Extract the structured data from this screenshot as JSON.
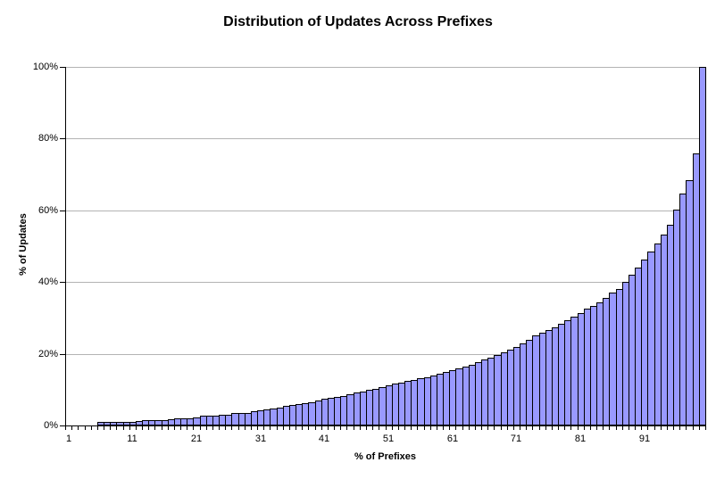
{
  "chart_data": {
    "type": "bar",
    "title": "Distribution of Updates Across Prefixes",
    "xlabel": "% of Prefixes",
    "ylabel": "% of Updates",
    "x_range": [
      1,
      100
    ],
    "ylim": [
      0,
      100
    ],
    "grid": "horizontal-every-20pct",
    "legend": "none",
    "bar_fill": "#9999ff",
    "bar_border": "#000000",
    "gridline_color": "#b3b3b3",
    "axis_color": "#000000",
    "yticks": [
      {
        "value": 0,
        "label": "0%"
      },
      {
        "value": 20,
        "label": "20%"
      },
      {
        "value": 40,
        "label": "40%"
      },
      {
        "value": 60,
        "label": "60%"
      },
      {
        "value": 80,
        "label": "80%"
      },
      {
        "value": 100,
        "label": "100%"
      }
    ],
    "xticks": [
      {
        "value": 1,
        "label": "1"
      },
      {
        "value": 11,
        "label": "11"
      },
      {
        "value": 21,
        "label": "21"
      },
      {
        "value": 31,
        "label": "31"
      },
      {
        "value": 41,
        "label": "41"
      },
      {
        "value": 51,
        "label": "51"
      },
      {
        "value": 61,
        "label": "61"
      },
      {
        "value": 71,
        "label": "71"
      },
      {
        "value": 81,
        "label": "81"
      },
      {
        "value": 91,
        "label": "91"
      }
    ],
    "values": [
      0,
      0,
      0,
      0,
      0,
      1,
      1,
      1,
      1,
      1,
      1,
      1.2,
      1.5,
      1.5,
      1.5,
      1.5,
      1.8,
      2,
      2,
      2,
      2.3,
      2.7,
      2.7,
      2.7,
      3,
      3,
      3.5,
      3.5,
      3.5,
      4,
      4.3,
      4.5,
      4.7,
      5,
      5.4,
      5.6,
      6,
      6.2,
      6.5,
      7,
      7.5,
      7.8,
      8,
      8.3,
      8.7,
      9.2,
      9.5,
      10,
      10.3,
      10.7,
      11.2,
      11.7,
      12,
      12.4,
      12.8,
      13.2,
      13.5,
      14,
      14.4,
      15,
      15.3,
      15.8,
      16.3,
      17,
      17.7,
      18.4,
      19,
      19.6,
      20.3,
      21.2,
      22,
      23,
      24,
      25,
      25.8,
      26.5,
      27.4,
      28.3,
      29.3,
      30.4,
      31.4,
      32.6,
      33.3,
      34.3,
      35.5,
      37,
      38,
      40,
      42,
      44,
      46.2,
      48.6,
      50.7,
      53.2,
      56,
      60.2,
      64.7,
      68.5,
      75.8,
      100
    ]
  }
}
